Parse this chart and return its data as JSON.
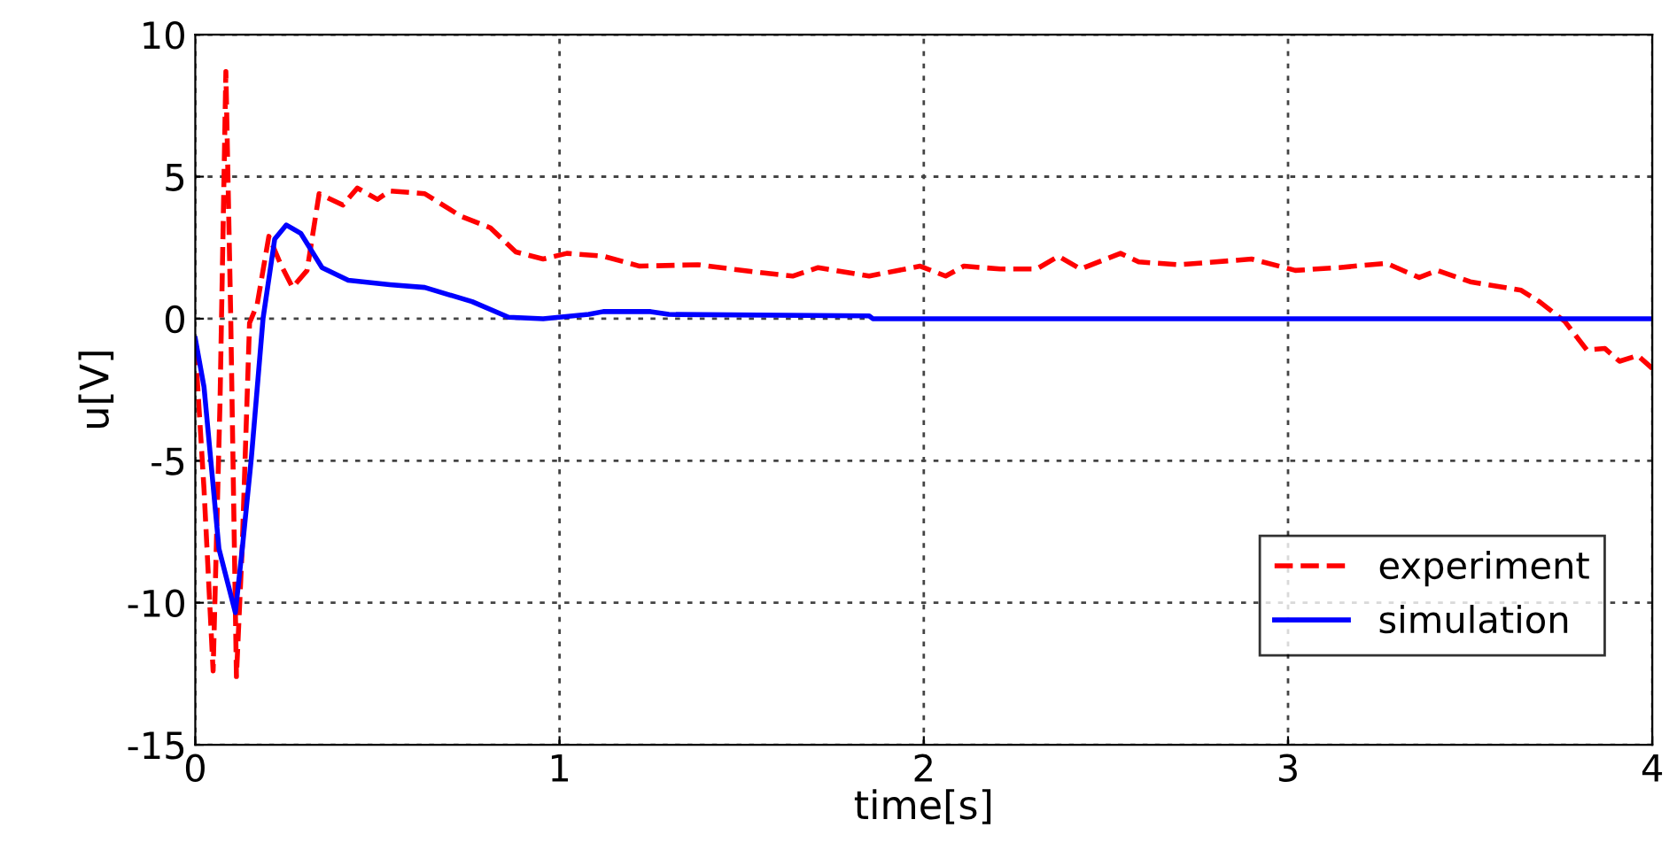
{
  "chart_data": {
    "type": "line",
    "xlabel": "time[s]",
    "ylabel": "u[V]",
    "xlim": [
      0,
      4
    ],
    "ylim": [
      -15,
      10
    ],
    "xticks": [
      0,
      1,
      2,
      3,
      4
    ],
    "yticks": [
      -15,
      -10,
      -5,
      0,
      5,
      10
    ],
    "grid": true,
    "legend": "bottom right",
    "series": [
      {
        "name": "experiment",
        "color": "#ff0000",
        "line_style": "dashed",
        "x": [
          0,
          0.024,
          0.049,
          0.068,
          0.084,
          0.097,
          0.113,
          0.129,
          0.149,
          0.17,
          0.202,
          0.235,
          0.267,
          0.307,
          0.34,
          0.405,
          0.445,
          0.5,
          0.534,
          0.63,
          0.73,
          0.81,
          0.88,
          0.955,
          1.02,
          1.12,
          1.22,
          1.38,
          1.52,
          1.64,
          1.71,
          1.85,
          1.99,
          2.06,
          2.11,
          2.21,
          2.31,
          2.37,
          2.43,
          2.54,
          2.59,
          2.7,
          2.9,
          3.02,
          3.14,
          3.27,
          3.36,
          3.41,
          3.5,
          3.64,
          3.69,
          3.76,
          3.82,
          3.87,
          3.91,
          3.96,
          4.0
        ],
        "values": [
          -1.0,
          -6,
          -12.4,
          -2.9,
          8.7,
          0.3,
          -12.6,
          -8,
          -0.15,
          0.5,
          2.9,
          1.9,
          1.1,
          1.7,
          4.4,
          4.0,
          4.6,
          4.2,
          4.5,
          4.4,
          3.6,
          3.2,
          2.35,
          2.1,
          2.3,
          2.2,
          1.85,
          1.9,
          1.67,
          1.5,
          1.8,
          1.5,
          1.85,
          1.5,
          1.85,
          1.75,
          1.75,
          2.2,
          1.75,
          2.3,
          2.0,
          1.9,
          2.1,
          1.7,
          1.8,
          1.95,
          1.45,
          1.7,
          1.3,
          1.0,
          0.6,
          -0.1,
          -1.1,
          -1.05,
          -1.5,
          -1.3,
          -1.75
        ]
      },
      {
        "name": "simulation",
        "color": "#0000ff",
        "line_style": "solid",
        "x": [
          0,
          0.024,
          0.065,
          0.089,
          0.11,
          0.129,
          0.154,
          0.186,
          0.218,
          0.25,
          0.29,
          0.348,
          0.42,
          0.534,
          0.63,
          0.76,
          0.86,
          0.955,
          1.08,
          1.12,
          1.25,
          1.3,
          1.85,
          1.86,
          4.0
        ],
        "values": [
          -0.7,
          -2.4,
          -8.1,
          -9.3,
          -10.35,
          -8.1,
          -4.9,
          0,
          2.8,
          3.3,
          3.0,
          1.8,
          1.35,
          1.2,
          1.1,
          0.6,
          0.05,
          0,
          0.15,
          0.25,
          0.25,
          0.15,
          0.1,
          0,
          0
        ]
      }
    ]
  }
}
